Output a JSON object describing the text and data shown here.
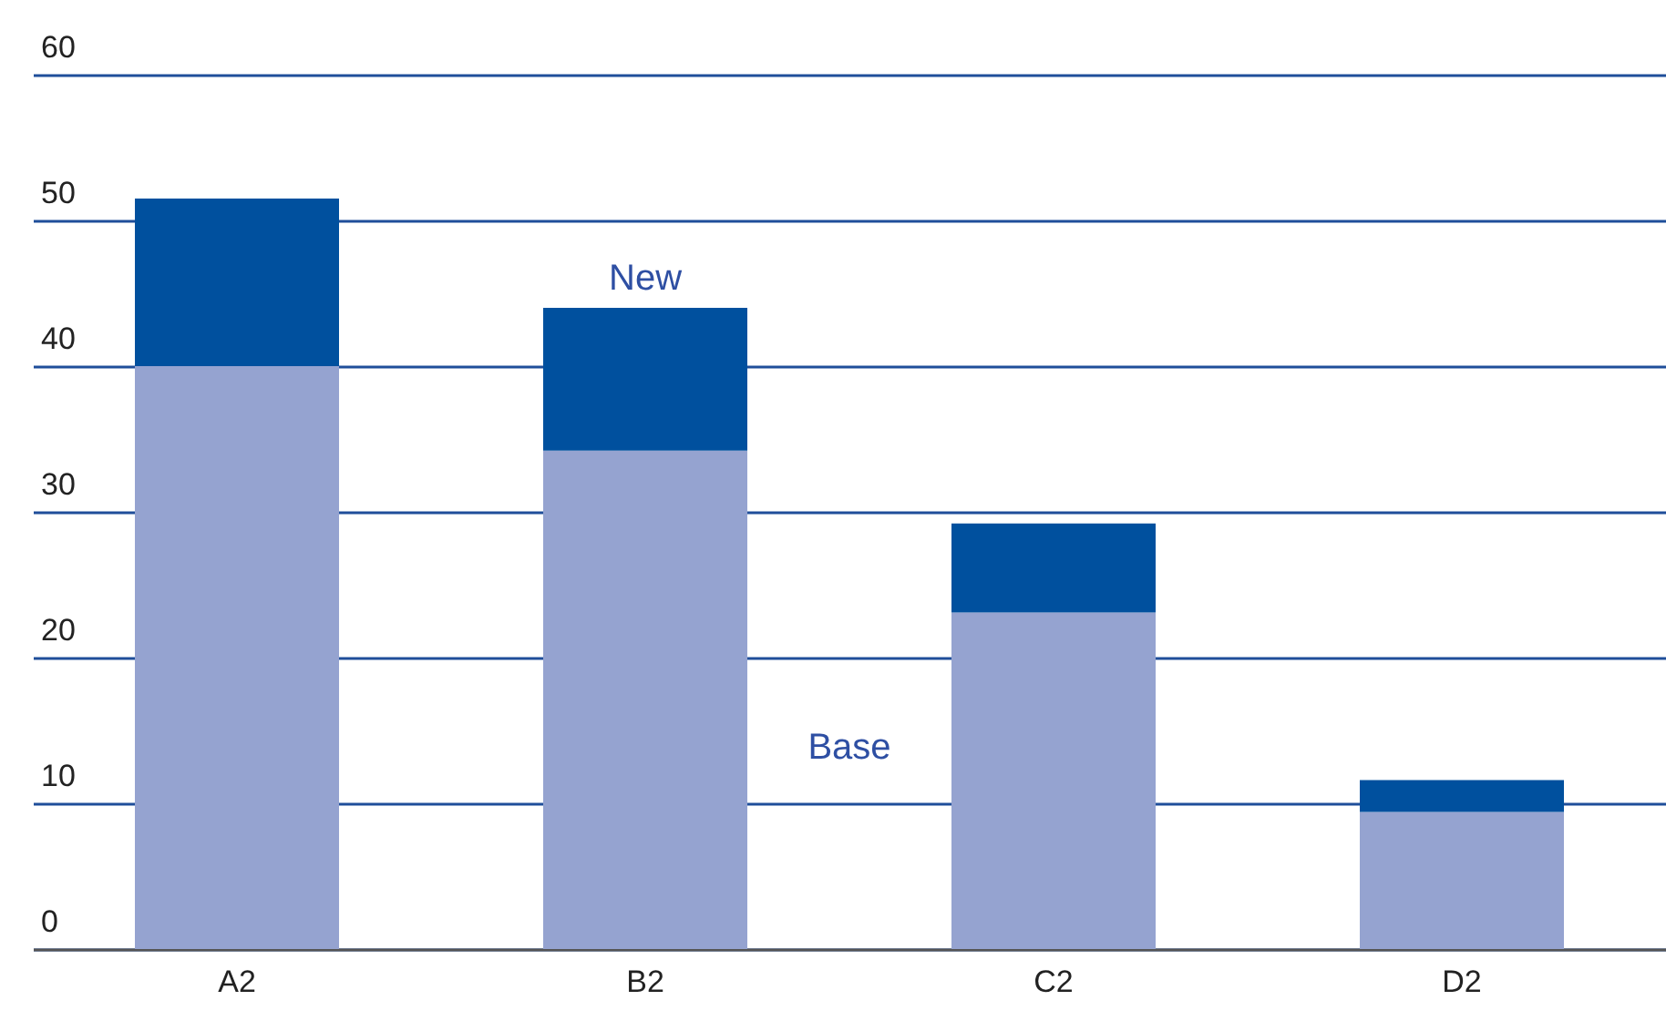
{
  "chart_data": {
    "type": "bar",
    "stacked": true,
    "categories": [
      "A2",
      "B2",
      "C2",
      "D2"
    ],
    "series": [
      {
        "name": "Base",
        "color": "#95a3d0",
        "values": [
          40,
          34.2,
          23.1,
          9.4
        ]
      },
      {
        "name": "New",
        "color": "#00509e",
        "values": [
          11.5,
          9.8,
          6.1,
          2.2
        ]
      }
    ],
    "ylim": [
      0,
      60
    ],
    "yticks": [
      0,
      10,
      20,
      30,
      40,
      50,
      60
    ],
    "grid": "y",
    "legend": false
  }
}
